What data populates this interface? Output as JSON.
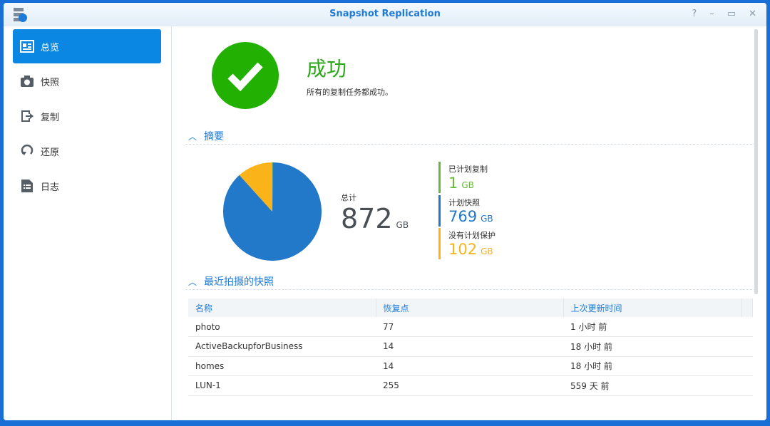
{
  "window": {
    "title": "Snapshot Replication",
    "controls": [
      "?",
      "–",
      "▭",
      "✕"
    ]
  },
  "sidebar": {
    "items": [
      {
        "label": "总览",
        "icon": "overview-icon",
        "active": true
      },
      {
        "label": "快照",
        "icon": "camera-icon"
      },
      {
        "label": "复制",
        "icon": "replication-icon"
      },
      {
        "label": "还原",
        "icon": "restore-icon"
      },
      {
        "label": "日志",
        "icon": "log-icon"
      }
    ]
  },
  "status": {
    "title": "成功",
    "message": "所有的复制任务都成功。",
    "color": "#22b002"
  },
  "summary": {
    "heading": "摘要",
    "total_label": "总计",
    "total_value": "872",
    "unit": "GB",
    "legend": [
      {
        "label": "已计划复制",
        "value": "1",
        "unit": "GB",
        "color": "#66bb3a"
      },
      {
        "label": "计划快照",
        "value": "769",
        "unit": "GB",
        "color": "#2379c9"
      },
      {
        "label": "没有计划保护",
        "value": "102",
        "unit": "GB",
        "color": "#fbb31a"
      }
    ]
  },
  "chart_data": {
    "type": "pie",
    "values": [
      1,
      769,
      102
    ],
    "categories": [
      "已计划复制",
      "计划快照",
      "没有计划保护"
    ],
    "colors": [
      "#66bb3a",
      "#2379c9",
      "#fbb31a"
    ]
  },
  "recent": {
    "heading": "最近拍摄的快照",
    "columns": [
      "名称",
      "恢复点",
      "上次更新时间"
    ],
    "rows": [
      [
        "photo",
        "77",
        "1 小时 前"
      ],
      [
        "ActiveBackupforBusiness",
        "14",
        "18 小时 前"
      ],
      [
        "homes",
        "14",
        "18 小时 前"
      ],
      [
        "LUN-1",
        "255",
        "559 天 前"
      ]
    ]
  }
}
